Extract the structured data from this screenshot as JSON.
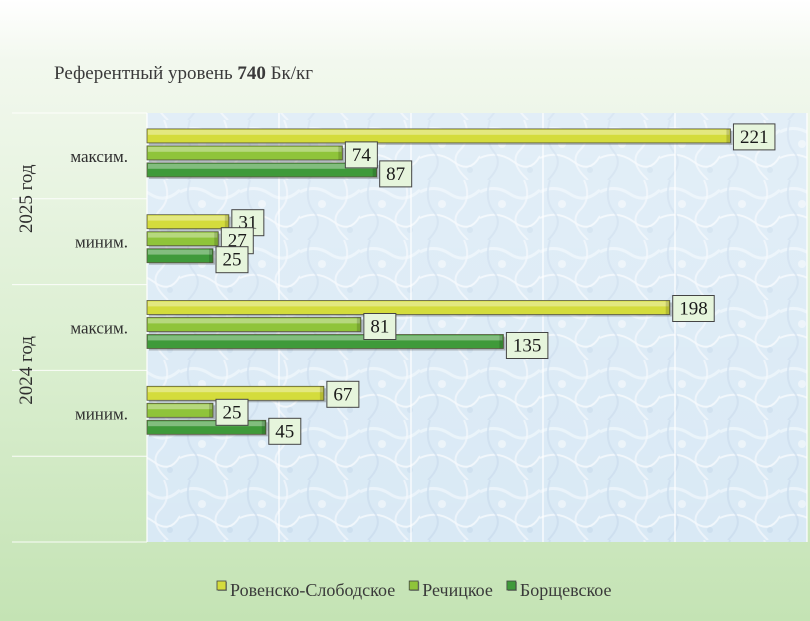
{
  "chart_data": {
    "type": "bar",
    "orientation": "horizontal",
    "title_prefix": "Референтный уровень ",
    "title_value": "740",
    "title_suffix": " Бк/кг",
    "groups": [
      {
        "label": "2025 год",
        "categories": [
          "максим.",
          "миним."
        ]
      },
      {
        "label": "2024 год",
        "categories": [
          "максим.",
          "миним."
        ]
      }
    ],
    "categories": [
      "2025 год — максим.",
      "2025 год — миним.",
      "2024 год — максим.",
      "2024 год — миним."
    ],
    "series": [
      {
        "name": "Ровенско-Слободское",
        "color": "#d4dc3c",
        "values": [
          221,
          31,
          198,
          67
        ]
      },
      {
        "name": "Речицкое",
        "color": "#8fc43a",
        "values": [
          74,
          27,
          81,
          25
        ]
      },
      {
        "name": "Борщевское",
        "color": "#3f9a3a",
        "values": [
          87,
          25,
          135,
          45
        ]
      }
    ],
    "xlim": [
      0,
      250
    ],
    "grid": true,
    "legend_position": "bottom"
  }
}
